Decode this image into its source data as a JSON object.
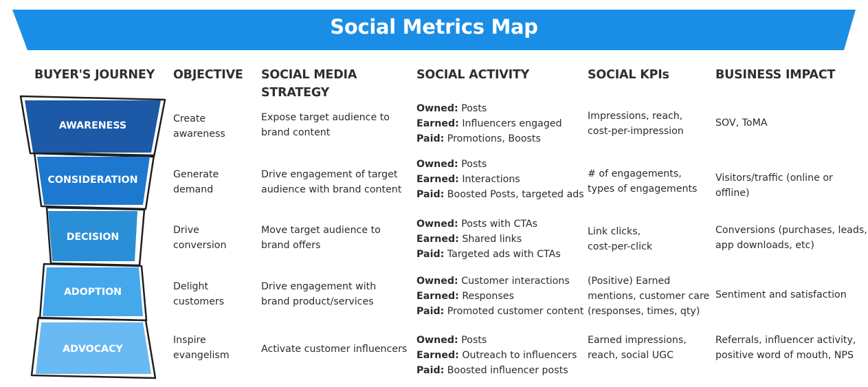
{
  "title": "Social Metrics Map",
  "colors": {
    "banner": "#1a8ee6",
    "awareness": "#1c5aa8",
    "consideration": "#1d79cf",
    "decision": "#2a8fd6",
    "adoption": "#44a8ea",
    "advocacy": "#69b9f2"
  },
  "headers": {
    "journey": "BUYER'S JOURNEY",
    "objective": "OBJECTIVE",
    "strategy_line1": "SOCIAL MEDIA",
    "strategy_line2": "STRATEGY",
    "activity": "SOCIAL ACTIVITY",
    "kpis": "SOCIAL KPIs",
    "impact": "BUSINESS IMPACT"
  },
  "rows": [
    {
      "stage": "AWARENESS",
      "objective": [
        "Create",
        "awareness"
      ],
      "strategy": [
        "Expose target audience to",
        "brand content"
      ],
      "activity": [
        {
          "label": "Owned:",
          "text": " Posts"
        },
        {
          "label": "Earned:",
          "text": " Influencers engaged"
        },
        {
          "label": "Paid:",
          "text": " Promotions, Boosts"
        }
      ],
      "kpis": [
        "Impressions, reach,",
        "cost-per-impression"
      ],
      "impact": [
        "SOV, ToMA"
      ]
    },
    {
      "stage": "CONSIDERATION",
      "objective": [
        "Generate",
        "demand"
      ],
      "strategy": [
        "Drive engagement of target",
        "audience with brand content"
      ],
      "activity": [
        {
          "label": "Owned:",
          "text": " Posts"
        },
        {
          "label": "Earned:",
          "text": " Interactions"
        },
        {
          "label": "Paid:",
          "text": " Boosted Posts, targeted ads"
        }
      ],
      "kpis": [
        "# of engagements,",
        "types of engagements"
      ],
      "impact": [
        "Visitors/traffic (online or offline)"
      ]
    },
    {
      "stage": "DECISION",
      "objective": [
        "Drive",
        "conversion"
      ],
      "strategy": [
        "Move target audience to",
        "brand offers"
      ],
      "activity": [
        {
          "label": "Owned:",
          "text": " Posts with CTAs"
        },
        {
          "label": "Earned:",
          "text": " Shared links"
        },
        {
          "label": "Paid:",
          "text": " Targeted ads with CTAs"
        }
      ],
      "kpis": [
        "Link clicks,",
        "cost-per-click"
      ],
      "impact": [
        "Conversions (purchases, leads,",
        "app downloads, etc)"
      ]
    },
    {
      "stage": "ADOPTION",
      "objective": [
        "Delight",
        "customers"
      ],
      "strategy": [
        "Drive engagement with",
        "brand product/services"
      ],
      "activity": [
        {
          "label": "Owned:",
          "text": " Customer interactions"
        },
        {
          "label": "Earned:",
          "text": " Responses"
        },
        {
          "label": "Paid:",
          "text": " Promoted customer content"
        }
      ],
      "kpis": [
        "(Positive) Earned",
        "mentions, customer care",
        "(responses, times, qty)"
      ],
      "impact": [
        "Sentiment and satisfaction"
      ]
    },
    {
      "stage": "ADVOCACY",
      "objective": [
        "Inspire",
        "evangelism"
      ],
      "strategy": [
        "Activate customer influencers"
      ],
      "activity": [
        {
          "label": "Owned:",
          "text": " Posts"
        },
        {
          "label": "Earned:",
          "text": " Outreach to influencers"
        },
        {
          "label": "Paid:",
          "text": " Boosted influencer posts"
        }
      ],
      "kpis": [
        "Earned impressions,",
        "reach, social UGC"
      ],
      "impact": [
        "Referrals, influencer activity,",
        "positive word of mouth, NPS"
      ]
    }
  ]
}
